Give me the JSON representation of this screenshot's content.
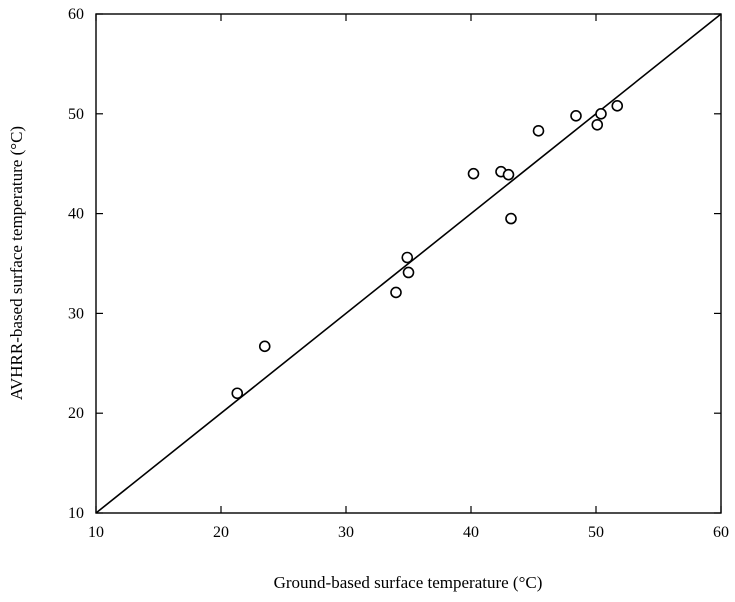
{
  "chart_data": {
    "type": "scatter",
    "title": "",
    "xlabel": "Ground-based surface temperature (°C)",
    "ylabel": "AVHRR-based surface temperature (°C)",
    "xlim": [
      10,
      60
    ],
    "ylim": [
      10,
      60
    ],
    "xticks": [
      10,
      20,
      30,
      40,
      50,
      60
    ],
    "yticks": [
      10,
      20,
      30,
      40,
      50,
      60
    ],
    "grid": false,
    "legend": "none",
    "marker": "open-circle",
    "reference_line": {
      "type": "1:1",
      "from": [
        10,
        10
      ],
      "to": [
        60,
        60
      ]
    },
    "points": [
      {
        "x": 21.3,
        "y": 22.0
      },
      {
        "x": 23.5,
        "y": 26.7
      },
      {
        "x": 34.0,
        "y": 32.1
      },
      {
        "x": 34.9,
        "y": 35.6
      },
      {
        "x": 35.0,
        "y": 34.1
      },
      {
        "x": 40.2,
        "y": 44.0
      },
      {
        "x": 42.4,
        "y": 44.2
      },
      {
        "x": 43.0,
        "y": 43.9
      },
      {
        "x": 43.2,
        "y": 39.5
      },
      {
        "x": 45.4,
        "y": 48.3
      },
      {
        "x": 48.4,
        "y": 49.8
      },
      {
        "x": 50.1,
        "y": 48.9
      },
      {
        "x": 50.4,
        "y": 50.0
      },
      {
        "x": 51.7,
        "y": 50.8
      }
    ]
  }
}
